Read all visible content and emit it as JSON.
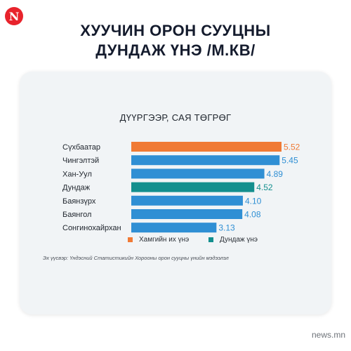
{
  "logo": {
    "letter": "N",
    "color": "#e8232c"
  },
  "headline": {
    "line1": "ХУУЧИН ОРОН СУУЦНЫ",
    "line2": "ДУНДАЖ ҮНЭ /М.КВ/"
  },
  "legend": [
    {
      "label": "Хамгийн их үнэ",
      "color": "#f07a35"
    },
    {
      "label": "Дундаж үнэ",
      "color": "#138f8e"
    }
  ],
  "source_note": "Эх үүсвэр: Үндэсний Статистикийн Хорооны орон сууцны үнийн мэдээлэл",
  "brand": "news.mn",
  "chart_data": {
    "type": "bar",
    "orientation": "horizontal",
    "title": "ДҮҮРГЭЭР, САЯ ТӨГРӨГ",
    "categories": [
      "Сүхбаатар",
      "Чингэлтэй",
      "Хан-Уул",
      "Дундаж",
      "Баянзүрх",
      "Баянгол",
      "Сонгинохайрхан"
    ],
    "values": [
      5.52,
      5.45,
      4.89,
      4.52,
      4.1,
      4.08,
      3.13
    ],
    "value_labels": [
      "5.52",
      "5.45",
      "4.89",
      "4.52",
      "4.10",
      "4.08",
      "3.13"
    ],
    "bar_colors": [
      "#f07a35",
      "#2f8fd4",
      "#2f8fd4",
      "#138f8e",
      "#2f8fd4",
      "#2f8fd4",
      "#2f8fd4"
    ],
    "label_colors": [
      "#f07a35",
      "#2f8fd4",
      "#2f8fd4",
      "#138f8e",
      "#2f8fd4",
      "#2f8fd4",
      "#2f8fd4"
    ],
    "xlim": [
      0,
      5.52
    ],
    "grid": false,
    "legend_position": "bottom"
  }
}
